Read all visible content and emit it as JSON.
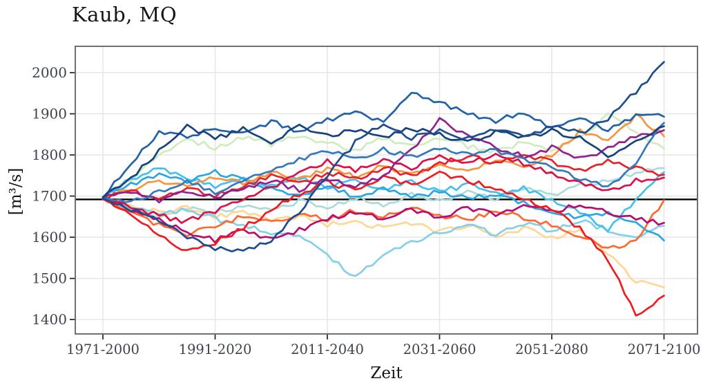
{
  "chart_data": {
    "type": "line",
    "title": "Kaub, MQ",
    "xlabel": "Zeit",
    "ylabel": "[m³/s]",
    "legend": "none",
    "grid": true,
    "x_tick_labels": [
      "1971-2000",
      "1991-2020",
      "2011-2040",
      "2031-2060",
      "2051-2080",
      "2071-2100"
    ],
    "x_tick_positions": [
      0,
      20,
      40,
      60,
      80,
      100
    ],
    "x_description": "30-year moving time windows from 1971-2000 to 2071-2100, index 0-100 in annual steps, values given every 5 steps",
    "y_ticks": [
      1400,
      1500,
      1600,
      1700,
      1800,
      1900,
      2000
    ],
    "ylim": [
      1365,
      2064
    ],
    "xlim": [
      -5,
      106
    ],
    "reference_line": {
      "value": 1692,
      "color": "#000000"
    },
    "style": {
      "grid_color": "#e4e4e4",
      "border_color": "#6f6f6f",
      "tick_color": "#1f1f1f",
      "tick_label_color": "#3f424d",
      "text_color": "#15151a"
    },
    "series": [
      {
        "name": "palecyan",
        "color": "#a9dcd9",
        "values": [
          1695,
          1668,
          1652,
          1672,
          1658,
          1680,
          1665,
          1688,
          1672,
          1695,
          1680,
          1702,
          1688,
          1710,
          1695,
          1718,
          1702,
          1725,
          1740,
          1755,
          1768
        ]
      },
      {
        "name": "palegreen",
        "color": "#cfecbc",
        "values": [
          1696,
          1742,
          1800,
          1838,
          1818,
          1845,
          1825,
          1848,
          1828,
          1812,
          1840,
          1820,
          1845,
          1822,
          1808,
          1832,
          1815,
          1842,
          1895,
          1858,
          1815
        ]
      },
      {
        "name": "paleorange",
        "color": "#ffd795",
        "values": [
          1694,
          1678,
          1660,
          1672,
          1650,
          1662,
          1640,
          1652,
          1630,
          1642,
          1620,
          1635,
          1612,
          1628,
          1605,
          1622,
          1600,
          1618,
          1560,
          1492,
          1478
        ]
      },
      {
        "name": "cyan",
        "color": "#84cfec",
        "values": [
          1692,
          1672,
          1655,
          1668,
          1645,
          1628,
          1612,
          1608,
          1555,
          1504,
          1560,
          1588,
          1612,
          1628,
          1608,
          1635,
          1615,
          1640,
          1618,
          1600,
          1628
        ]
      },
      {
        "name": "skyblue2",
        "color": "#45c0ee",
        "values": [
          1697,
          1742,
          1768,
          1745,
          1722,
          1748,
          1726,
          1745,
          1720,
          1740,
          1715,
          1735,
          1710,
          1728,
          1705,
          1718,
          1692,
          1662,
          1618,
          1690,
          1758
        ]
      },
      {
        "name": "skyblue",
        "color": "#2aa7e2",
        "values": [
          1698,
          1728,
          1755,
          1738,
          1758,
          1740,
          1718,
          1702,
          1722,
          1700,
          1718,
          1695,
          1712,
          1692,
          1705,
          1682,
          1662,
          1645,
          1662,
          1635,
          1592
        ]
      },
      {
        "name": "orangered",
        "color": "#fc6a32",
        "values": [
          1693,
          1662,
          1630,
          1605,
          1628,
          1650,
          1635,
          1658,
          1642,
          1665,
          1648,
          1670,
          1652,
          1645,
          1662,
          1648,
          1628,
          1605,
          1572,
          1592,
          1690
        ]
      },
      {
        "name": "orange",
        "color": "#f79440",
        "values": [
          1697,
          1715,
          1738,
          1722,
          1748,
          1730,
          1756,
          1740,
          1765,
          1748,
          1772,
          1752,
          1780,
          1762,
          1788,
          1770,
          1800,
          1858,
          1832,
          1898,
          1845
        ]
      },
      {
        "name": "magenta",
        "color": "#b80d6e",
        "values": [
          1693,
          1668,
          1640,
          1612,
          1592,
          1615,
          1595,
          1618,
          1645,
          1662,
          1645,
          1668,
          1650,
          1672,
          1655,
          1678,
          1660,
          1682,
          1662,
          1645,
          1635
        ]
      },
      {
        "name": "crimson",
        "color": "#dc1048",
        "values": [
          1695,
          1676,
          1652,
          1638,
          1665,
          1692,
          1722,
          1755,
          1785,
          1762,
          1792,
          1770,
          1798,
          1778,
          1802,
          1780,
          1755,
          1732,
          1712,
          1738,
          1745
        ]
      },
      {
        "name": "red2",
        "color": "#e62129",
        "values": [
          1698,
          1712,
          1692,
          1718,
          1700,
          1726,
          1748,
          1730,
          1758,
          1740,
          1768,
          1750,
          1778,
          1798,
          1780,
          1802,
          1782,
          1762,
          1788,
          1768,
          1752
        ]
      },
      {
        "name": "red1",
        "color": "#f2191f",
        "values": [
          1692,
          1655,
          1605,
          1565,
          1588,
          1622,
          1665,
          1705,
          1735,
          1712,
          1748,
          1728,
          1755,
          1738,
          1718,
          1695,
          1668,
          1622,
          1545,
          1412,
          1458
        ]
      },
      {
        "name": "purple",
        "color": "#93208f",
        "values": [
          1696,
          1710,
          1690,
          1714,
          1694,
          1718,
          1736,
          1716,
          1744,
          1722,
          1750,
          1812,
          1885,
          1844,
          1818,
          1796,
          1818,
          1792,
          1815,
          1845,
          1860
        ]
      },
      {
        "name": "blue2",
        "color": "#3579bd",
        "values": [
          1696,
          1688,
          1712,
          1735,
          1710,
          1742,
          1762,
          1788,
          1812,
          1790,
          1815,
          1795,
          1820,
          1800,
          1812,
          1788,
          1768,
          1742,
          1722,
          1780,
          1878
        ]
      },
      {
        "name": "blue1",
        "color": "#2161aa",
        "values": [
          1697,
          1778,
          1855,
          1842,
          1868,
          1850,
          1880,
          1858,
          1885,
          1905,
          1880,
          1948,
          1925,
          1902,
          1882,
          1905,
          1868,
          1888,
          1862,
          1895,
          1893
        ]
      },
      {
        "name": "navy1",
        "color": "#17427d",
        "values": [
          1695,
          1740,
          1812,
          1872,
          1840,
          1862,
          1832,
          1868,
          1845,
          1862,
          1842,
          1866,
          1848,
          1832,
          1856,
          1840,
          1858,
          1843,
          1795,
          1832,
          1870
        ]
      },
      {
        "name": "navy2",
        "color": "#1d4d8f",
        "values": [
          1694,
          1668,
          1640,
          1600,
          1572,
          1566,
          1592,
          1660,
          1750,
          1830,
          1878,
          1840,
          1862,
          1838,
          1864,
          1842,
          1870,
          1852,
          1890,
          1955,
          2026
        ]
      }
    ]
  }
}
